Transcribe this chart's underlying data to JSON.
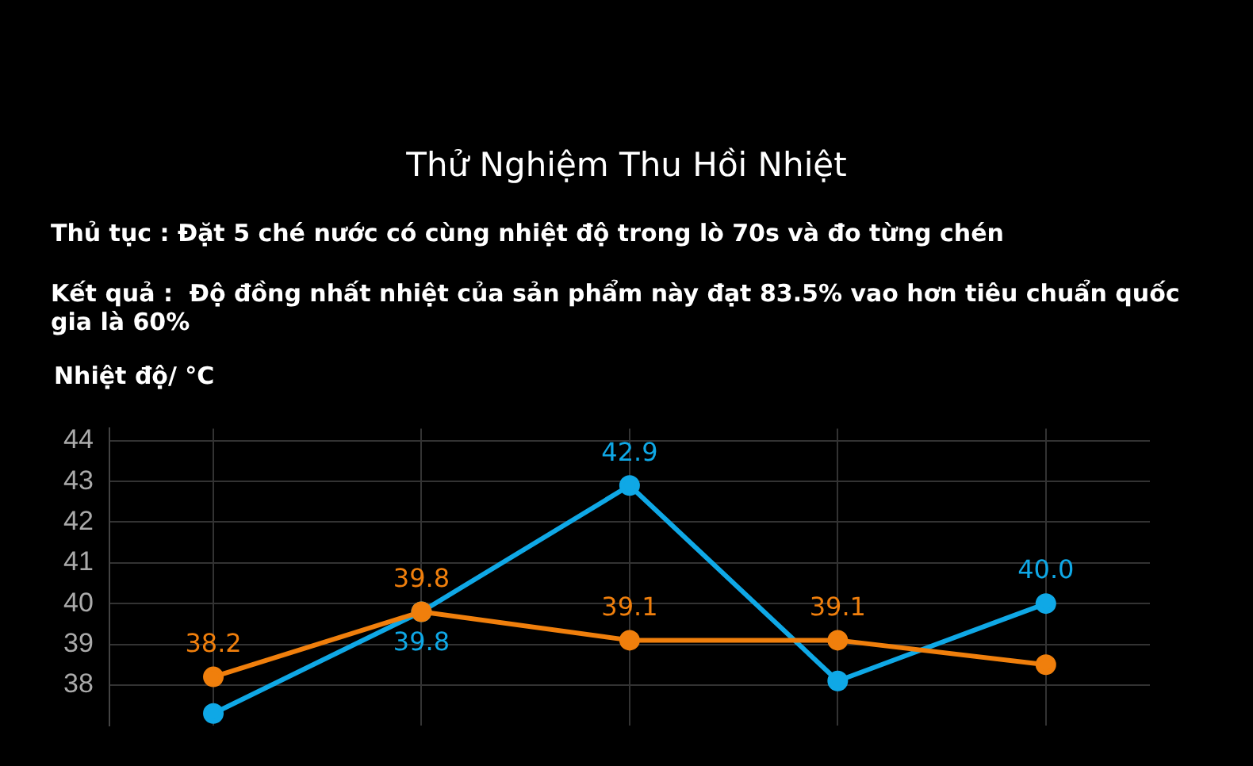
{
  "chart_data": {
    "type": "line",
    "title": "Thử Nghiệm Thu Hồi Nhiệt",
    "subtitle": "Thủ tục : Đặt 5 ché nước có cùng nhiệt độ trong lò 70s và đo từng chén",
    "annotations": [
      "Kết quả :  Độ đồng nhất nhiệt của sản phẩm này đạt 83.5% vao hơn tiêu chuẩn quốc gia là 60%"
    ],
    "ylabel": "Nhiệt độ/ °C",
    "categories": [
      null,
      null,
      null,
      null,
      null
    ],
    "series": [
      {
        "color": "#f07f0c",
        "values": [
          38.2,
          39.8,
          39.1,
          39.1,
          38.5
        ],
        "value_labels": [
          "38.2",
          "39.8",
          "39.1",
          "39.1",
          null
        ]
      },
      {
        "color": "#0fa8e6",
        "values": [
          37.3,
          39.8,
          42.9,
          38.1,
          40.0
        ],
        "value_labels": [
          null,
          "39.8",
          "42.9",
          null,
          "40.0"
        ]
      }
    ],
    "ylim": [
      37,
      44.3
    ],
    "yticks": [
      38,
      39,
      40,
      41,
      42,
      43,
      44
    ],
    "grid": true,
    "legend": false,
    "marker": "circle",
    "line_style": "solid"
  }
}
